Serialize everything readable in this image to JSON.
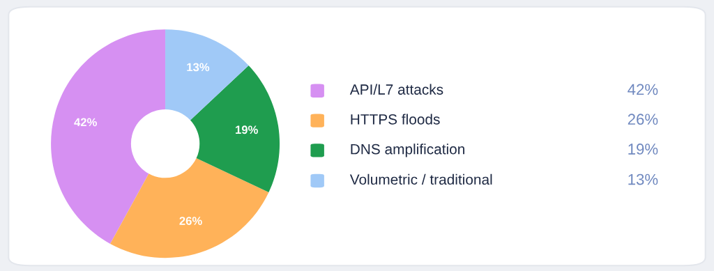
{
  "chart_data": {
    "type": "donut",
    "categories": [
      "API/L7 attacks",
      "HTTPS floods",
      "DNS amplification",
      "Volumetric / traditional"
    ],
    "values": [
      42,
      26,
      19,
      13
    ],
    "colors": [
      "#d690f2",
      "#ffb259",
      "#1f9d4f",
      "#a0c9f7"
    ],
    "value_labels": [
      "42%",
      "26%",
      "19%",
      "13%"
    ],
    "legend": "right"
  }
}
